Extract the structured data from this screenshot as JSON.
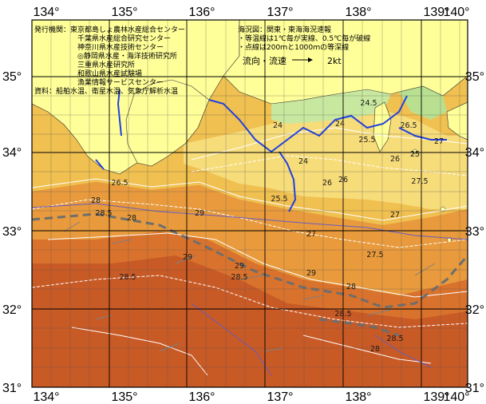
{
  "map": {
    "lon_ticks": [
      "134°",
      "135°",
      "136°",
      "137°",
      "138°",
      "139°",
      "140°"
    ],
    "lat_ticks": [
      "35°",
      "34°",
      "33°",
      "32°",
      "31°"
    ],
    "sst_labels": [
      "24",
      "24",
      "24",
      "24.5",
      "25",
      "25.5",
      "25.5",
      "26",
      "26",
      "26",
      "26.5",
      "26.5",
      "27",
      "27",
      "27",
      "27.5",
      "27.5",
      "28",
      "28",
      "28",
      "28",
      "28.5",
      "28.5",
      "28.5",
      "28.5",
      "28.5",
      "29",
      "29",
      "29",
      "29"
    ],
    "colors": {
      "land": "#ffff99",
      "sea_cool": "#c8e8a0",
      "sea_mid": "#f0c050",
      "sea_warm": "#e89a3c",
      "sea_hot": "#c85020",
      "isobath": "#2040e0",
      "current_arrow": "#707070",
      "kuroshio_axis": "#6e6e6e",
      "grid": "#000000"
    }
  },
  "info": {
    "org_title": "発行機関：",
    "orgs": [
      "東京都島しょ農林水産総合センター",
      "千葉県水産総合研究センター",
      "神奈川県水産技術センター",
      "◎静岡県水産・海洋技術研究所",
      "三重県水産研究所",
      "和歌山県水産試験場",
      "漁業情報サービスセンター"
    ],
    "data_source": "資料：船舶水温、衛星水温、気象庁解析水温",
    "legend_lines": [
      "海況図：関東・東海海況速報",
      "・等温線は1℃毎が実線、0.5℃毎が破線",
      "・点線は200ｍと1000ｍの等深線"
    ],
    "current_label": "流向・流速",
    "current_speed": "2kt"
  }
}
